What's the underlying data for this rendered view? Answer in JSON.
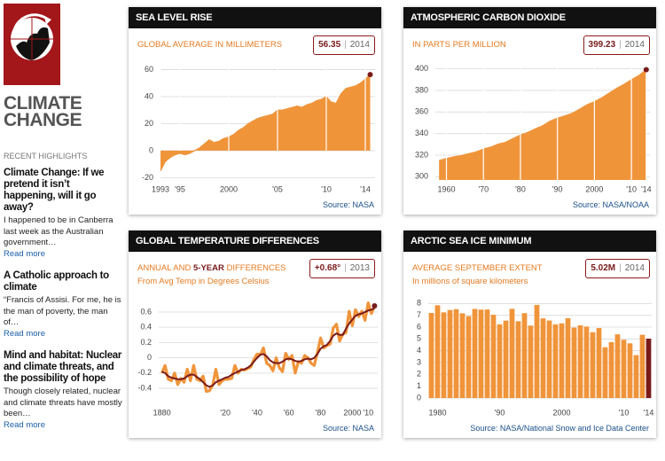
{
  "sidebar": {
    "logo": [
      "CLIMATE",
      "CHANGE"
    ],
    "heading": "RECENT HIGHLIGHTS",
    "items": [
      {
        "title": "Climate Change: If we pretend it isn’t happening, will it go away?",
        "text": "I happened to be in Canberra last week as the Australian government…",
        "link": "Read more"
      },
      {
        "title": "A Catholic approach to climate",
        "text": "“Francis of Assisi. For me, he is the man of poverty, the man of…",
        "link": "Read more"
      },
      {
        "title": "Mind and habitat: Nuclear and climate threats, and the possibility of hope",
        "text": "Though closely related, nuclear and climate threats have mostly been…",
        "link": "Read more"
      }
    ]
  },
  "chart_data": [
    {
      "type": "area",
      "title": "SEA LEVEL RISE",
      "subtitle": "GLOBAL AVERAGE IN MILLIMETERS",
      "highlight": "56.35",
      "year": "2014",
      "source": "Source: NASA",
      "x": [
        1993,
        1993.5,
        1994,
        1994.5,
        1995,
        1995.5,
        1996,
        1996.5,
        1997,
        1997.5,
        1998,
        1998.5,
        1999,
        1999.5,
        2000,
        2000.5,
        2001,
        2001.5,
        2002,
        2002.5,
        2003,
        2003.5,
        2004,
        2004.5,
        2005,
        2005.5,
        2006,
        2006.5,
        2007,
        2007.5,
        2008,
        2008.5,
        2009,
        2009.5,
        2010,
        2010.5,
        2011,
        2011.5,
        2012,
        2012.5,
        2013,
        2013.5,
        2014,
        2014.5
      ],
      "values": [
        -15,
        -8,
        -5,
        -3,
        -2,
        -3,
        -2,
        0,
        2,
        5,
        8,
        6,
        7,
        9,
        10,
        12,
        15,
        17,
        20,
        22,
        24,
        25,
        26,
        27,
        30,
        30,
        31,
        32,
        33,
        32,
        34,
        35,
        37,
        38,
        40,
        36,
        35,
        42,
        46,
        47,
        48,
        50,
        53,
        56.35
      ],
      "color": "#f0943a",
      "marker_color": "#7a1a1a",
      "xlim": [
        1993,
        2015
      ],
      "ylim": [
        -25,
        63
      ],
      "xticks": [
        1993,
        {
          "value": 1995,
          "label": "'95"
        },
        2000,
        {
          "value": 2005,
          "label": "'05"
        },
        {
          "value": 2010,
          "label": "'10"
        },
        {
          "value": 2014,
          "label": "'14"
        }
      ],
      "yticks": [
        -20,
        0,
        20,
        40,
        60
      ],
      "grid": true
    },
    {
      "type": "area",
      "title": "ATMOSPHERIC CARBON DIOXIDE",
      "subtitle": "IN PARTS PER MILLION",
      "highlight": "399.23",
      "year": "2014",
      "source": "Source: NASA/NOAA",
      "x": [
        1958,
        1960,
        1962,
        1964,
        1966,
        1968,
        1970,
        1972,
        1974,
        1976,
        1978,
        1980,
        1982,
        1984,
        1986,
        1988,
        1990,
        1992,
        1994,
        1996,
        1998,
        2000,
        2002,
        2004,
        2006,
        2008,
        2010,
        2012,
        2014
      ],
      "values": [
        315,
        317,
        318.5,
        319.6,
        321.4,
        323,
        325.7,
        327.5,
        330.2,
        332,
        335.4,
        338.7,
        341.1,
        344.4,
        347.2,
        351.5,
        354.4,
        356.4,
        358.8,
        362.6,
        366.7,
        369.6,
        373.2,
        377.5,
        381.9,
        385.6,
        389.9,
        393.8,
        399.23
      ],
      "color": "#f0943a",
      "marker_color": "#7a1a1a",
      "xlim": [
        1957,
        2015
      ],
      "ylim": [
        297,
        403
      ],
      "xticks": [
        1960,
        {
          "value": 1970,
          "label": "'70"
        },
        {
          "value": 1980,
          "label": "'80"
        },
        {
          "value": 1990,
          "label": "'90"
        },
        2000,
        {
          "value": 2010,
          "label": "'10"
        },
        {
          "value": 2014,
          "label": "'14"
        }
      ],
      "yticks": [
        300,
        320,
        340,
        360,
        380,
        400
      ],
      "grid": true
    },
    {
      "type": "line",
      "title": "GLOBAL TEMPERATURE DIFFERENCES",
      "subtitle": [
        "ANNUAL AND",
        "5-YEAR",
        "DIFFERENCES"
      ],
      "subtitle2": "From Avg Temp in Degrees Celsius",
      "highlight": "+0.68°",
      "year": "2013",
      "source": "Source: NASA",
      "x": [
        1880,
        1882,
        1884,
        1886,
        1888,
        1890,
        1892,
        1894,
        1896,
        1898,
        1900,
        1902,
        1904,
        1906,
        1908,
        1910,
        1912,
        1914,
        1916,
        1918,
        1920,
        1922,
        1924,
        1926,
        1928,
        1930,
        1932,
        1934,
        1936,
        1938,
        1940,
        1942,
        1944,
        1946,
        1948,
        1950,
        1952,
        1954,
        1956,
        1958,
        1960,
        1962,
        1964,
        1966,
        1968,
        1970,
        1972,
        1974,
        1976,
        1978,
        1980,
        1982,
        1984,
        1986,
        1988,
        1990,
        1992,
        1994,
        1996,
        1998,
        2000,
        2002,
        2004,
        2006,
        2008,
        2010,
        2012,
        2014
      ],
      "series": [
        {
          "color": "#f0943a",
          "values": [
            -0.2,
            -0.1,
            -0.28,
            -0.3,
            -0.2,
            -0.35,
            -0.27,
            -0.32,
            -0.15,
            -0.3,
            -0.1,
            -0.28,
            -0.3,
            -0.24,
            -0.44,
            -0.43,
            -0.36,
            -0.15,
            -0.35,
            -0.3,
            -0.28,
            -0.28,
            -0.27,
            -0.1,
            -0.2,
            -0.15,
            -0.16,
            -0.14,
            -0.12,
            -0.02,
            0.05,
            0.04,
            0.13,
            -0.07,
            -0.1,
            -0.17,
            0.0,
            -0.13,
            -0.18,
            0.06,
            -0.02,
            0.03,
            -0.2,
            -0.05,
            -0.07,
            0.03,
            0.0,
            -0.07,
            -0.1,
            0.07,
            0.26,
            0.13,
            0.16,
            0.18,
            0.39,
            0.44,
            0.22,
            0.31,
            0.33,
            0.61,
            0.42,
            0.63,
            0.54,
            0.61,
            0.49,
            0.72,
            0.58,
            0.68
          ]
        },
        {
          "color": "#7a1a1a",
          "values": [
            -0.18,
            -0.2,
            -0.24,
            -0.26,
            -0.27,
            -0.28,
            -0.28,
            -0.27,
            -0.24,
            -0.22,
            -0.22,
            -0.25,
            -0.28,
            -0.32,
            -0.36,
            -0.38,
            -0.36,
            -0.32,
            -0.3,
            -0.28,
            -0.26,
            -0.25,
            -0.22,
            -0.2,
            -0.18,
            -0.16,
            -0.15,
            -0.13,
            -0.1,
            -0.05,
            0.0,
            0.04,
            0.05,
            0.02,
            -0.03,
            -0.06,
            -0.07,
            -0.07,
            -0.05,
            -0.02,
            -0.01,
            -0.02,
            -0.04,
            -0.05,
            -0.04,
            -0.02,
            -0.01,
            -0.02,
            0.0,
            0.05,
            0.12,
            0.15,
            0.17,
            0.22,
            0.29,
            0.32,
            0.3,
            0.3,
            0.38,
            0.45,
            0.5,
            0.55,
            0.57,
            0.58,
            0.6,
            0.62,
            0.63,
            0.65
          ]
        }
      ],
      "marker_color": "#7a1a1a",
      "xlim": [
        1878,
        2016
      ],
      "ylim": [
        -0.55,
        0.75
      ],
      "xticks": [
        1880,
        {
          "value": 1920,
          "label": "'20"
        },
        {
          "value": 1940,
          "label": "'40"
        },
        {
          "value": 1960,
          "label": "'60"
        },
        {
          "value": 1980,
          "label": "'80"
        },
        2000,
        {
          "value": 2010,
          "label": "'10"
        }
      ],
      "yticks": [
        -0.4,
        -0.2,
        0,
        0.2,
        0.4,
        0.6
      ],
      "grid": true
    },
    {
      "type": "bar",
      "title": "ARCTIC SEA ICE MINIMUM",
      "subtitle": "AVERAGE SEPTEMBER EXTENT",
      "subtitle2": "In millions of square kilometers",
      "highlight": "5.02M",
      "year": "2014",
      "source": "Source: NASA/National Snow and Ice Data Center",
      "x": [
        1979,
        1980,
        1981,
        1982,
        1983,
        1984,
        1985,
        1986,
        1987,
        1988,
        1989,
        1990,
        1991,
        1992,
        1993,
        1994,
        1995,
        1996,
        1997,
        1998,
        1999,
        2000,
        2001,
        2002,
        2003,
        2004,
        2005,
        2006,
        2007,
        2008,
        2009,
        2010,
        2011,
        2012,
        2013,
        2014
      ],
      "values": [
        7.2,
        7.85,
        7.25,
        7.45,
        7.52,
        7.17,
        6.93,
        7.54,
        7.48,
        7.49,
        7.04,
        6.24,
        6.55,
        7.55,
        6.5,
        7.18,
        6.13,
        7.88,
        6.74,
        6.56,
        6.24,
        6.32,
        6.75,
        5.96,
        6.15,
        6.05,
        5.57,
        5.92,
        4.3,
        4.73,
        5.39,
        4.93,
        4.63,
        3.63,
        5.35,
        5.02
      ],
      "color": "#f0943a",
      "last_color": "#7a1a1a",
      "xlim": [
        1978.5,
        2014.5
      ],
      "ylim": [
        0,
        8.4
      ],
      "xticks": [
        1980,
        {
          "value": 1990,
          "label": "'90"
        },
        2000,
        {
          "value": 2010,
          "label": "'10"
        },
        {
          "value": 2014,
          "label": "'14"
        }
      ],
      "yticks": [
        0,
        1,
        2,
        3,
        4,
        5,
        6,
        7,
        8
      ],
      "grid": true
    }
  ]
}
